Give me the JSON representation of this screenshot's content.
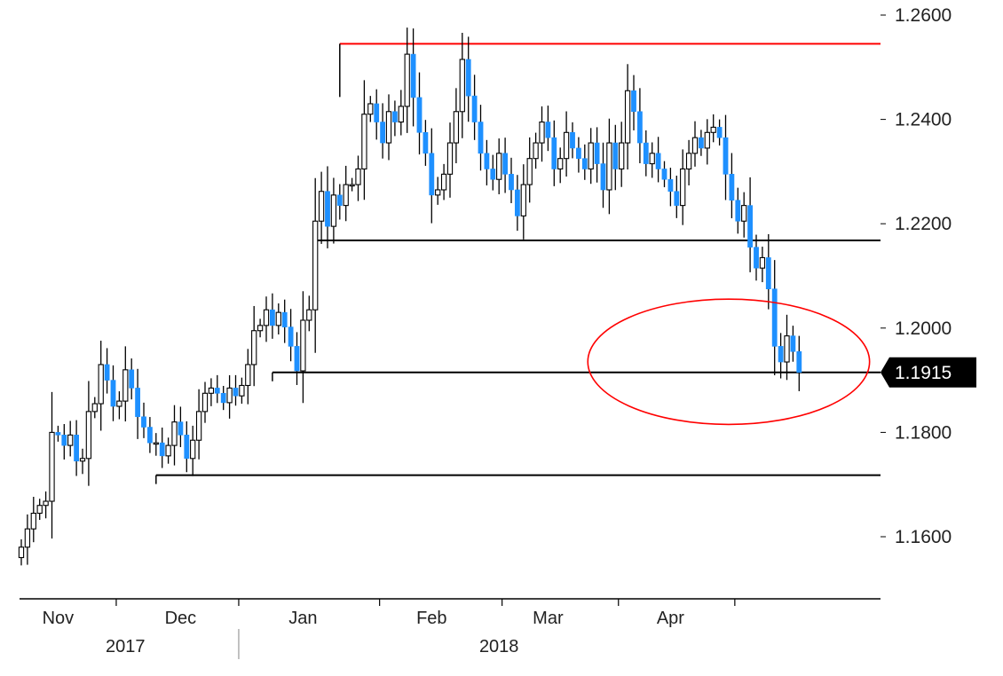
{
  "chart_data": {
    "type": "candlestick",
    "title": "",
    "xlabel": "",
    "ylabel": "",
    "ylim": [
      1.15,
      1.26
    ],
    "y_axis_side": "right",
    "y_ticks": [
      {
        "value": 1.26,
        "label": "1.2600"
      },
      {
        "value": 1.24,
        "label": "1.2400"
      },
      {
        "value": 1.22,
        "label": "1.2200"
      },
      {
        "value": 1.2,
        "label": "1.2000"
      },
      {
        "value": 1.18,
        "label": "1.1800"
      },
      {
        "value": 1.16,
        "label": "1.1600"
      }
    ],
    "months": [
      {
        "label": "Nov",
        "index": 6
      },
      {
        "label": "Dec",
        "index": 26
      },
      {
        "label": "Jan",
        "index": 46
      },
      {
        "label": "Feb",
        "index": 67
      },
      {
        "label": "Mar",
        "index": 86
      },
      {
        "label": "Apr",
        "index": 106
      }
    ],
    "month_separators": [
      15,
      35,
      58,
      78,
      97,
      116
    ],
    "years": [
      {
        "label": "2017",
        "index": 17
      },
      {
        "label": "2018",
        "index": 78
      }
    ],
    "year_separator_index": 35,
    "colors": {
      "up": "#ffffff",
      "up_outline": "#000000",
      "down": "#1e90ff",
      "wick": "#000000",
      "support": "#000000",
      "resistance": "#ff0000",
      "circle": "#ff0000",
      "price_tag": "#000000"
    },
    "current_price": {
      "value": 1.1915,
      "label": "1.1915"
    },
    "horizontal_lines": [
      {
        "value": 1.2545,
        "from_index": 52,
        "color": "resistance"
      },
      {
        "value": 1.2168,
        "from_index": 48,
        "color": "support"
      },
      {
        "value": 1.1915,
        "from_index": 41,
        "color": "support"
      },
      {
        "value": 1.1718,
        "from_index": 22,
        "color": "support"
      }
    ],
    "highlight_circle": {
      "center_index": 115.5,
      "center_value": 1.1915,
      "half_width_bars": 23,
      "half_height_value": 0.0115
    },
    "closes": [
      1.158,
      1.1615,
      1.1645,
      1.166,
      1.1668,
      1.18,
      1.1795,
      1.1775,
      1.1795,
      1.1745,
      1.175,
      1.184,
      1.1855,
      1.193,
      1.19,
      1.185,
      1.186,
      1.192,
      1.1885,
      1.183,
      1.181,
      1.178,
      1.178,
      1.1755,
      1.1775,
      1.182,
      1.1795,
      1.175,
      1.1785,
      1.184,
      1.1875,
      1.1885,
      1.1875,
      1.1857,
      1.1885,
      1.187,
      1.189,
      1.193,
      1.1995,
      1.2005,
      1.2035,
      1.2005,
      1.203,
      1.2002,
      1.1965,
      1.1918,
      1.2015,
      1.2035,
      1.2205,
      1.2262,
      1.2195,
      1.2255,
      1.2235,
      1.2275,
      1.2275,
      1.2305,
      1.241,
      1.243,
      1.2395,
      1.2355,
      1.2415,
      1.2395,
      1.2425,
      1.2525,
      1.2442,
      1.2375,
      1.2335,
      1.2255,
      1.2265,
      1.2295,
      1.2355,
      1.2415,
      1.2515,
      1.2445,
      1.2395,
      1.2335,
      1.2305,
      1.2285,
      1.2335,
      1.2295,
      1.2265,
      1.2215,
      1.2275,
      1.2325,
      1.2355,
      1.2395,
      1.2365,
      1.2305,
      1.2325,
      1.2375,
      1.2345,
      1.2325,
      1.2305,
      1.2355,
      1.2315,
      1.2265,
      1.2355,
      1.2305,
      1.2355,
      1.2455,
      1.2415,
      1.2355,
      1.2315,
      1.2335,
      1.2305,
      1.2285,
      1.2262,
      1.2235,
      1.2305,
      1.2335,
      1.2365,
      1.2345,
      1.2375,
      1.2385,
      1.2365,
      1.2295,
      1.2245,
      1.2205,
      1.2235,
      1.2155,
      1.2115,
      1.2135,
      1.2075,
      1.1965,
      1.1935,
      1.1985,
      1.1955,
      1.1915
    ]
  }
}
